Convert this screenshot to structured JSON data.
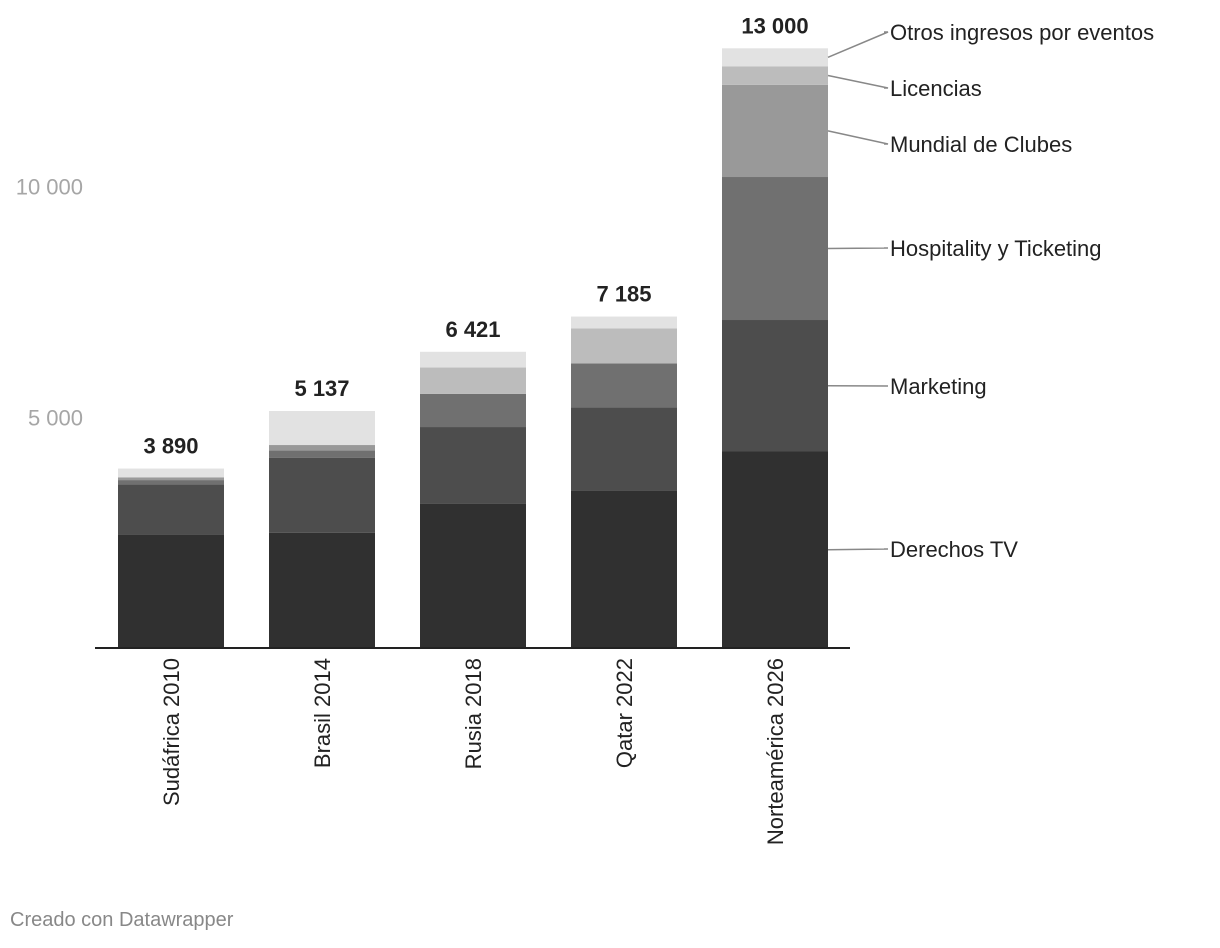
{
  "chart_data": {
    "type": "bar",
    "stacked": true,
    "categories": [
      "Sudáfrica 2010",
      "Brasil 2014",
      "Rusia 2018",
      "Qatar 2022",
      "Norteamérica 2026"
    ],
    "totals": [
      "3 890",
      "5 137",
      "6 421",
      "7 185",
      "13 000"
    ],
    "total_values": [
      3890,
      5137,
      6421,
      7185,
      13000
    ],
    "series": [
      {
        "name": "Derechos TV",
        "color": "#303030",
        "values": [
          2450,
          2500,
          3130,
          3420,
          4260
        ]
      },
      {
        "name": "Marketing",
        "color": "#4d4d4d",
        "values": [
          1100,
          1620,
          1660,
          1800,
          2850
        ]
      },
      {
        "name": "Hospitality y Ticketing",
        "color": "#707070",
        "values": [
          90,
          160,
          720,
          950,
          3100
        ]
      },
      {
        "name": "Mundial de Clubes",
        "color": "#999999",
        "values": [
          60,
          120,
          0,
          0,
          2000
        ]
      },
      {
        "name": "Licencias",
        "color": "#bcbcbc",
        "values": [
          0,
          0,
          570,
          760,
          400
        ]
      },
      {
        "name": "Otros ingresos por eventos",
        "color": "#e2e2e2",
        "values": [
          190,
          737,
          341,
          255,
          390
        ]
      }
    ],
    "yticks": [
      5000,
      10000
    ],
    "ytick_labels": [
      "5 000",
      "10 000"
    ],
    "ylim": [
      0,
      13500
    ],
    "grid": false,
    "legend": "right-inline"
  },
  "footer": {
    "credit": "Creado con Datawrapper"
  }
}
